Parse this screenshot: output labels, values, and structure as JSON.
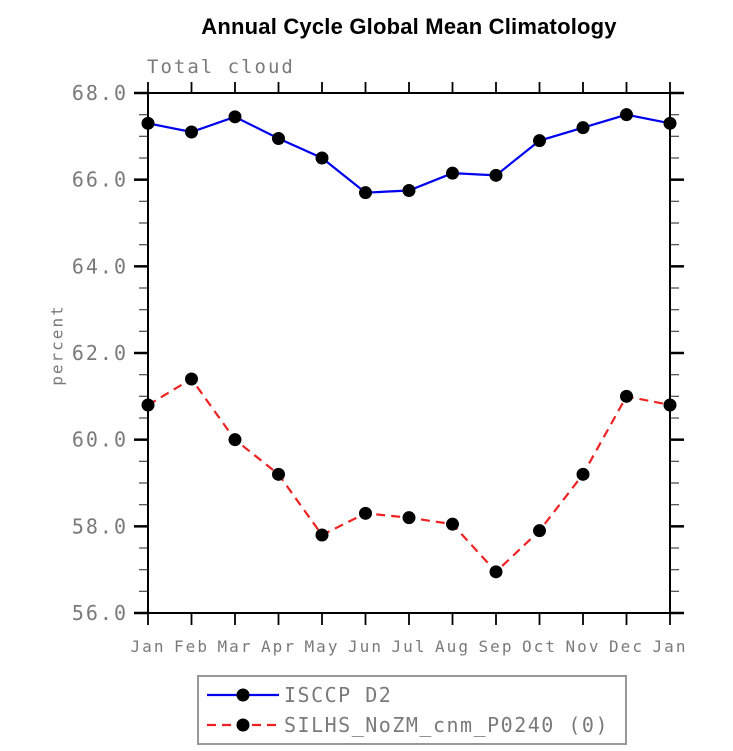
{
  "header": {
    "title": "Annual Cycle Global Mean Climatology"
  },
  "chart_data": {
    "type": "line",
    "title": "Annual Cycle Global Mean Climatology",
    "subtitle": "Total cloud",
    "xlabel": "",
    "ylabel": "percent",
    "x_categories": [
      "Jan",
      "Feb",
      "Mar",
      "Apr",
      "May",
      "Jun",
      "Jul",
      "Aug",
      "Sep",
      "Oct",
      "Nov",
      "Dec",
      "Jan"
    ],
    "ylim": [
      56.0,
      68.0
    ],
    "ytick_step": 2.0,
    "ytick_minor_step": 0.5,
    "ytick_labels": [
      "56.0",
      "58.0",
      "60.0",
      "62.0",
      "64.0",
      "66.0",
      "68.0"
    ],
    "grid": false,
    "legend_position": "bottom",
    "series": [
      {
        "name": "ISCCP D2",
        "color": "#0000EE",
        "line_style": "solid",
        "marker": "circle",
        "marker_color": "#000000",
        "values": [
          67.3,
          67.1,
          67.45,
          66.95,
          66.5,
          65.7,
          65.75,
          66.15,
          66.1,
          66.9,
          67.2,
          67.5,
          67.3
        ]
      },
      {
        "name": "SILHS_NoZM_cnm_P0240 (0)",
        "color": "#EE2222",
        "line_style": "dashed",
        "marker": "circle",
        "marker_color": "#000000",
        "values": [
          60.8,
          61.4,
          60.0,
          59.2,
          57.8,
          58.3,
          58.2,
          58.05,
          56.95,
          57.9,
          59.2,
          61.0,
          60.8
        ]
      }
    ],
    "colors": {
      "axis": "#000000",
      "minor_tick": "#555555",
      "label_text": "#7a7a7a",
      "legend_border": "#999999"
    }
  }
}
